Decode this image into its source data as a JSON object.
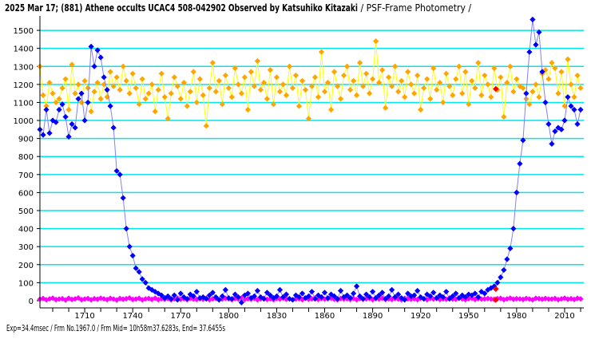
{
  "chart_data": {
    "type": "line",
    "title": "2025 Mar 17; (881) Athene occults UCAC4 508-042902 Observed by Katsuhiko Kitazaki",
    "subtitle": " / PSF-Frame Photometry /",
    "footer": "Exp=34.4msec / Frm No.1967.0 / Frm Mid= 10h58m37.6283s,  End= 37.6455s",
    "xlabel": "",
    "ylabel": "",
    "xlim": [
      1682,
      2022
    ],
    "ylim": [
      -40,
      1580
    ],
    "grid": true,
    "x_start": 1682,
    "x_step": 2,
    "x_ticks": [
      1710,
      1740,
      1770,
      1800,
      1830,
      1860,
      1890,
      1920,
      1950,
      1980,
      2010
    ],
    "y_ticks": [
      0,
      100,
      200,
      300,
      400,
      500,
      600,
      700,
      800,
      900,
      1000,
      1100,
      1200,
      1300,
      1400,
      1500
    ],
    "colors": {
      "grid": "#00e5ee",
      "orange": "#ffa500",
      "orange_line": "#ffff00",
      "blue": "#0000ff",
      "blue_line": "#8080ff",
      "magenta": "#ff00ff",
      "highlight": "#ff0000"
    },
    "series": [
      {
        "name": "comparison",
        "color": "#ffa500",
        "line": "#ffff00",
        "values": [
          1300,
          1140,
          1080,
          1210,
          1150,
          1100,
          1120,
          1180,
          1230,
          1060,
          1310,
          1150,
          1200,
          1100,
          1220,
          1180,
          1050,
          1160,
          1210,
          1120,
          1200,
          1130,
          1270,
          1190,
          1240,
          1170,
          1300,
          1220,
          1150,
          1260,
          1180,
          1090,
          1230,
          1120,
          1150,
          1200,
          1050,
          1170,
          1260,
          1130,
          1010,
          1150,
          1240,
          1190,
          1120,
          1210,
          1080,
          1160,
          1270,
          1100,
          1230,
          1140,
          970,
          1180,
          1320,
          1160,
          1220,
          1090,
          1250,
          1180,
          1130,
          1290,
          1200,
          1150,
          1240,
          1060,
          1270,
          1190,
          1330,
          1170,
          1210,
          1120,
          1280,
          1090,
          1240,
          1160,
          1200,
          1140,
          1300,
          1180,
          1250,
          1080,
          1220,
          1170,
          1010,
          1190,
          1240,
          1130,
          1380,
          1160,
          1210,
          1060,
          1270,
          1190,
          1120,
          1250,
          1300,
          1170,
          1220,
          1140,
          1320,
          1190,
          1260,
          1150,
          1230,
          1440,
          1210,
          1280,
          1070,
          1240,
          1190,
          1300,
          1160,
          1220,
          1130,
          1270,
          1200,
          1150,
          1250,
          1060,
          1180,
          1230,
          1120,
          1290,
          1170,
          1210,
          1100,
          1260,
          1190,
          1140,
          1230,
          1300,
          1150,
          1270,
          1090,
          1220,
          1180,
          1320,
          1140,
          1250,
          1200,
          1130,
          1290,
          1170,
          1240,
          1020,
          1210,
          1300,
          1160,
          1230,
          1190,
          1180,
          1120,
          1090,
          1160,
          1200,
          1130,
          1260,
          1280,
          1230,
          1320,
          1290,
          1150,
          1270,
          1080,
          1340,
          1200,
          1130,
          1250,
          1180
        ]
      },
      {
        "name": "target",
        "color": "#0000ff",
        "line": "#8080ff",
        "values": [
          950,
          920,
          1060,
          930,
          1000,
          990,
          1060,
          1090,
          1020,
          910,
          980,
          960,
          1120,
          1150,
          1000,
          1100,
          1410,
          1300,
          1390,
          1350,
          1240,
          1170,
          1080,
          960,
          720,
          700,
          570,
          400,
          300,
          250,
          180,
          160,
          120,
          100,
          70,
          60,
          50,
          40,
          30,
          15,
          25,
          10,
          30,
          5,
          40,
          20,
          10,
          35,
          25,
          50,
          15,
          20,
          10,
          30,
          45,
          20,
          5,
          25,
          60,
          15,
          10,
          35,
          20,
          -10,
          30,
          40,
          15,
          25,
          55,
          20,
          10,
          45,
          30,
          15,
          25,
          60,
          20,
          35,
          10,
          5,
          30,
          20,
          40,
          15,
          25,
          50,
          10,
          30,
          20,
          45,
          15,
          35,
          25,
          10,
          55,
          20,
          30,
          15,
          40,
          80,
          25,
          10,
          35,
          20,
          50,
          15,
          30,
          45,
          10,
          25,
          60,
          20,
          35,
          15,
          5,
          40,
          25,
          30,
          55,
          20,
          10,
          35,
          25,
          45,
          15,
          30,
          20,
          50,
          10,
          25,
          40,
          15,
          30,
          20,
          35,
          30,
          40,
          20,
          50,
          40,
          60,
          70,
          80,
          100,
          130,
          170,
          230,
          290,
          400,
          600,
          760,
          890,
          1150,
          1380,
          1560,
          1420,
          1490,
          1270,
          1100,
          980,
          870,
          940,
          960,
          950,
          1000,
          1130,
          1080,
          1060,
          980,
          1060
        ]
      },
      {
        "name": "background",
        "color": "#ff00ff",
        "line": "#ff00ff",
        "values": [
          8,
          12,
          5,
          10,
          14,
          6,
          9,
          11,
          4,
          13,
          7,
          10,
          15,
          6,
          9,
          12,
          5,
          11,
          8,
          14,
          10,
          6,
          13,
          9,
          4,
          12,
          8,
          11,
          15,
          7,
          9,
          13,
          5,
          10,
          12,
          7,
          14,
          6,
          11,
          8,
          12,
          5,
          10,
          14,
          8,
          11,
          6,
          13,
          9,
          7,
          11,
          8,
          14,
          6,
          10,
          12,
          5,
          9,
          13,
          10,
          6,
          12,
          9,
          15,
          7,
          11,
          8,
          13,
          5,
          10,
          13,
          7,
          10,
          6,
          12,
          9,
          14,
          8,
          11,
          5,
          9,
          11,
          6,
          13,
          8,
          10,
          15,
          7,
          12,
          9,
          10,
          14,
          8,
          5,
          12,
          9,
          11,
          7,
          13,
          6,
          12,
          8,
          10,
          13,
          6,
          11,
          9,
          14,
          7,
          10,
          7,
          12,
          9,
          5,
          13,
          10,
          8,
          11,
          6,
          14,
          11,
          6,
          13,
          9,
          12,
          7,
          10,
          8,
          15,
          9,
          8,
          13,
          10,
          6,
          11,
          14,
          7,
          12,
          9,
          10,
          12,
          9,
          7,
          11,
          13,
          6,
          10,
          14,
          8,
          11,
          10,
          7,
          12,
          9,
          5,
          13,
          11,
          8,
          12,
          9,
          9,
          12,
          6,
          10,
          14,
          8,
          11,
          7,
          13,
          10
        ]
      }
    ],
    "highlight": {
      "frame": 1967,
      "comparison": 1175,
      "target": 65,
      "background": 5
    }
  }
}
